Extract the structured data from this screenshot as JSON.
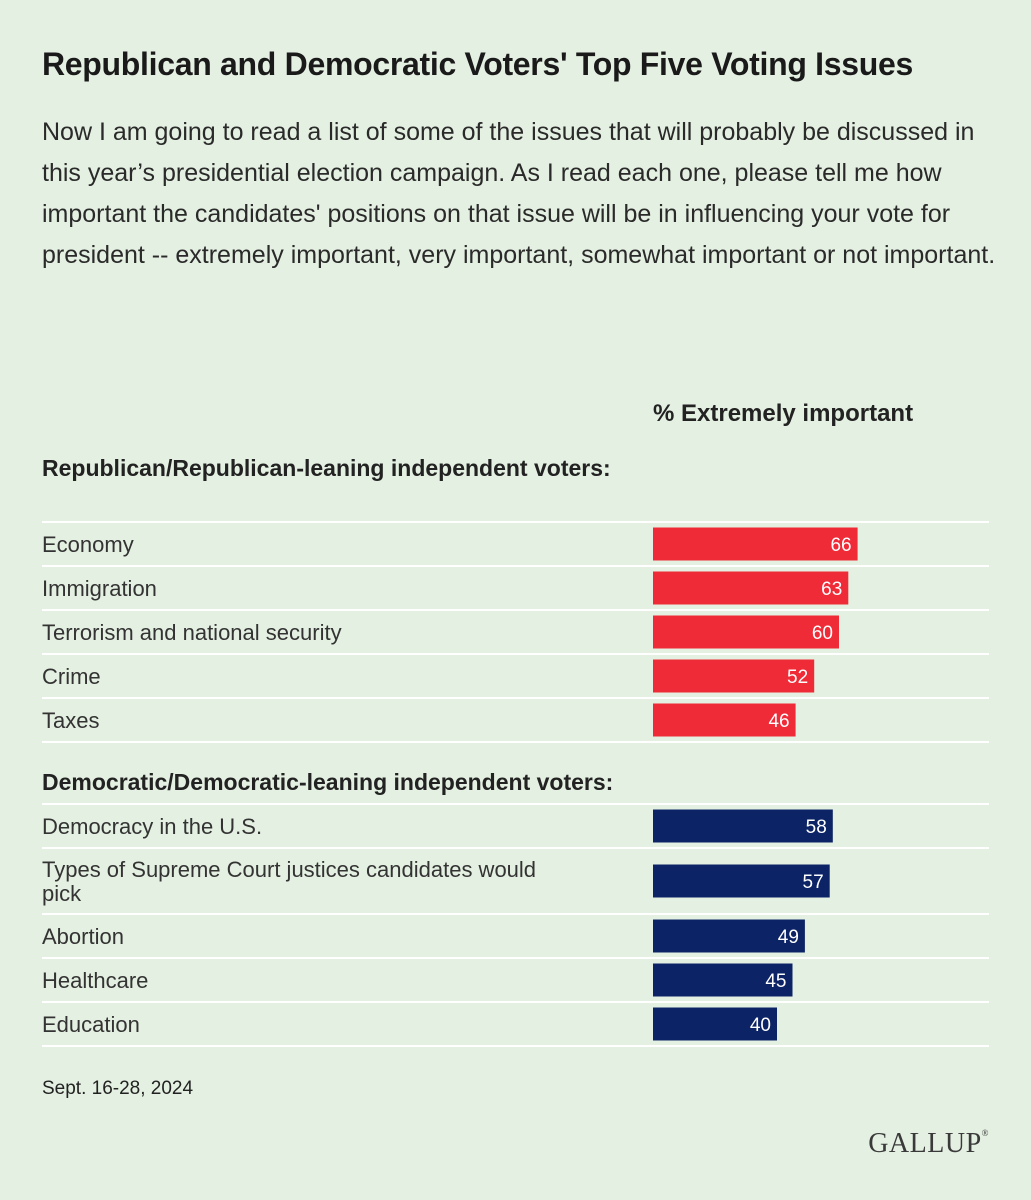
{
  "header": {
    "title": "Republican and Democratic Voters' Top Five Voting Issues",
    "subtitle": "Now I am going to read a list of some of the issues that will probably be discussed in this year’s presidential election campaign. As I read each one, please tell me how important the candidates' positions on that issue will be in influencing your vote for president -- extremely important, very important, somewhat important or not important."
  },
  "chart_data": {
    "type": "bar",
    "orientation": "horizontal",
    "metric_label": "% Extremely important",
    "xlim": [
      0,
      100
    ],
    "grid": false,
    "groups": [
      {
        "name": "Republican/Republican-leaning independent voters:",
        "color": "#f02b38",
        "categories": [
          "Economy",
          "Immigration",
          "Terrorism and national security",
          "Crime",
          "Taxes"
        ],
        "values": [
          66,
          63,
          60,
          52,
          46
        ]
      },
      {
        "name": "Democratic/Democratic-leaning independent voters:",
        "color": "#0c2466",
        "categories": [
          "Democracy in the U.S.",
          "Types of Supreme Court justices candidates would pick",
          "Abortion",
          "Healthcare",
          "Education"
        ],
        "values": [
          58,
          57,
          49,
          45,
          40
        ]
      }
    ]
  },
  "footer": {
    "date": "Sept. 16-28, 2024",
    "brand": "GALLUP"
  }
}
